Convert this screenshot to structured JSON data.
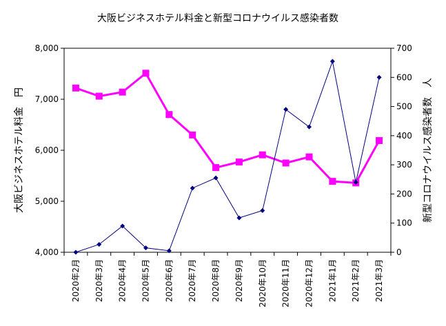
{
  "chart_data": {
    "type": "line",
    "title": "大阪ビジネスホテル料金と新型コロナウイルス感染者数",
    "categories": [
      "2020年2月",
      "2020年3月",
      "2020年4月",
      "2020年5月",
      "2020年6月",
      "2020年7月",
      "2020年8月",
      "2020年9月",
      "2020年10月",
      "2020年11月",
      "2020年12月",
      "2021年1月",
      "2021年2月",
      "2021年3月"
    ],
    "y_left": {
      "label": "大阪ビジネスホテル料金　円",
      "min": 4000,
      "max": 8000,
      "ticks": [
        "4,000",
        "5,000",
        "6,000",
        "7,000",
        "8,000"
      ]
    },
    "y_right": {
      "label": "新型コロナウイルス感染者数　人",
      "min": 0,
      "max": 700,
      "ticks": [
        "0",
        "100",
        "200",
        "300",
        "400",
        "500",
        "600",
        "700"
      ]
    },
    "series": [
      {
        "axis": "left",
        "color": "#ff00ff",
        "marker": "square",
        "values": [
          7220,
          7060,
          7140,
          7510,
          6700,
          6300,
          5660,
          5770,
          5910,
          5750,
          5870,
          5390,
          5360,
          6190
        ]
      },
      {
        "axis": "right",
        "color": "#000080",
        "marker": "diamond",
        "values": [
          0,
          27,
          90,
          15,
          5,
          220,
          255,
          118,
          143,
          490,
          430,
          655,
          240,
          600
        ]
      }
    ],
    "grid": false,
    "legend": "none"
  }
}
